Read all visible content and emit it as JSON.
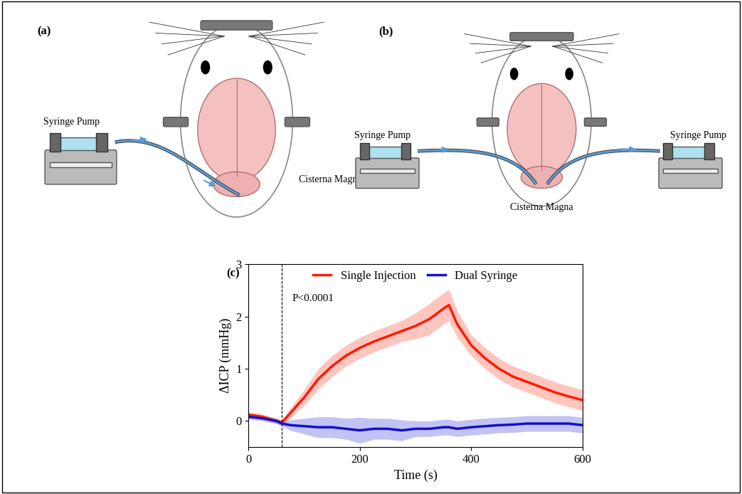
{
  "panel_a": {
    "label": "(a)",
    "pump_label": "Syringe Pump",
    "site_label": "Cisterna Magna"
  },
  "panel_b": {
    "label": "(b)",
    "pump_labels": [
      "Syringe Pump",
      "Syringe Pump"
    ],
    "site_label": "Cisterna Magna"
  },
  "chart_data": {
    "type": "line",
    "panel_label": "(c)",
    "x_label": "Time (s)",
    "y_label": "ΔICP (mmHg)",
    "annotation": "P<0.0001",
    "reference_line_x": 60,
    "x": [
      0,
      25,
      50,
      60,
      75,
      100,
      125,
      150,
      175,
      200,
      225,
      250,
      275,
      300,
      325,
      350,
      360,
      375,
      400,
      425,
      450,
      475,
      500,
      525,
      550,
      575,
      600
    ],
    "series": [
      {
        "name": "Single Injection",
        "color": "#ff1a00",
        "values": [
          0.12,
          0.08,
          0.0,
          -0.03,
          0.15,
          0.45,
          0.8,
          1.05,
          1.25,
          1.4,
          1.52,
          1.62,
          1.72,
          1.82,
          1.95,
          2.15,
          2.22,
          1.85,
          1.45,
          1.2,
          1.0,
          0.85,
          0.75,
          0.65,
          0.55,
          0.47,
          0.4
        ],
        "errors": [
          0.05,
          0.05,
          0.05,
          0.05,
          0.1,
          0.15,
          0.2,
          0.2,
          0.2,
          0.2,
          0.2,
          0.2,
          0.2,
          0.25,
          0.3,
          0.3,
          0.3,
          0.25,
          0.2,
          0.2,
          0.2,
          0.2,
          0.2,
          0.2,
          0.2,
          0.2,
          0.2
        ]
      },
      {
        "name": "Dual Syringe",
        "color": "#1010d0",
        "values": [
          0.08,
          0.05,
          0.0,
          -0.05,
          -0.08,
          -0.1,
          -0.12,
          -0.12,
          -0.15,
          -0.18,
          -0.15,
          -0.15,
          -0.18,
          -0.15,
          -0.15,
          -0.12,
          -0.12,
          -0.15,
          -0.12,
          -0.1,
          -0.08,
          -0.07,
          -0.05,
          -0.05,
          -0.05,
          -0.05,
          -0.08
        ],
        "errors": [
          0.05,
          0.05,
          0.05,
          0.05,
          0.1,
          0.15,
          0.2,
          0.2,
          0.2,
          0.25,
          0.2,
          0.2,
          0.2,
          0.15,
          0.15,
          0.15,
          0.15,
          0.15,
          0.15,
          0.15,
          0.15,
          0.15,
          0.15,
          0.15,
          0.15,
          0.15,
          0.15
        ]
      }
    ],
    "xlim": [
      0,
      600
    ],
    "ylim": [
      -0.5,
      3
    ],
    "xticks": [
      0,
      200,
      400,
      600
    ],
    "yticks": [
      0,
      1,
      2,
      3
    ],
    "legend": "upper center"
  }
}
